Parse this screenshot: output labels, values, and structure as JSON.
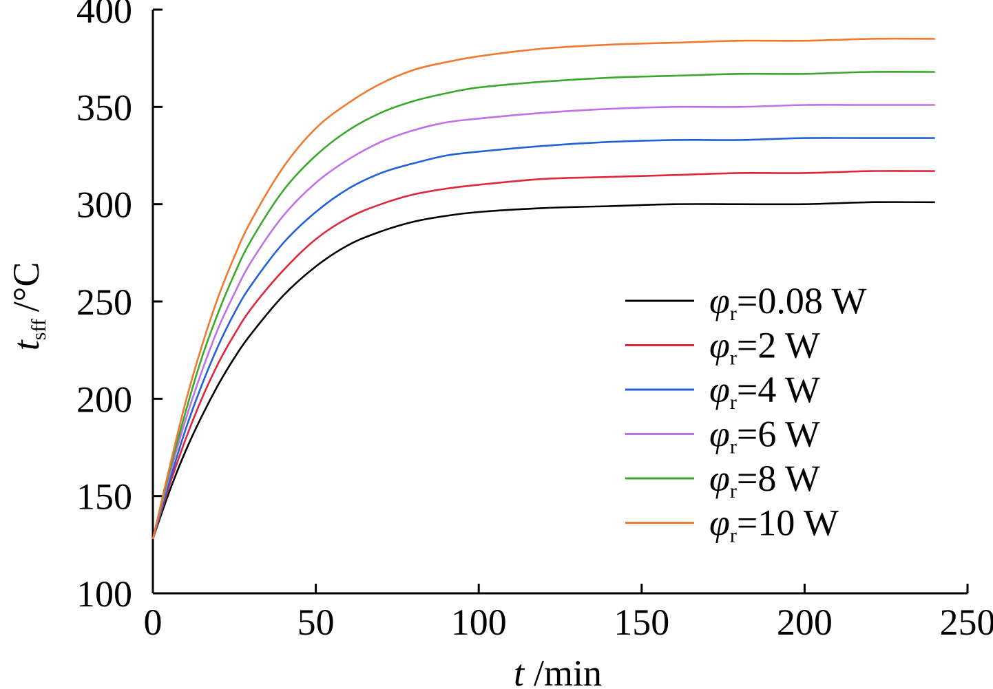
{
  "chart_data": {
    "type": "line",
    "xlabel": {
      "var": "t",
      "unit": "/min"
    },
    "ylabel": {
      "var": "t",
      "sub": "sff",
      "unit": "/°C"
    },
    "xlim": [
      0,
      250
    ],
    "ylim": [
      100,
      400
    ],
    "xticks": [
      0,
      50,
      100,
      150,
      200,
      250
    ],
    "yticks": [
      100,
      150,
      200,
      250,
      300,
      350,
      400
    ],
    "xtick_labels": [
      "0",
      "50",
      "100",
      "150",
      "200",
      "250"
    ],
    "ytick_labels": [
      "100",
      "150",
      "200",
      "250",
      "300",
      "350",
      "400"
    ],
    "grid": false,
    "legend_position": "center-right",
    "x": [
      0,
      5,
      10,
      15,
      20,
      25,
      30,
      40,
      50,
      60,
      70,
      80,
      90,
      100,
      120,
      140,
      160,
      180,
      200,
      220,
      240
    ],
    "series": [
      {
        "name": "φr=0.08 W",
        "sym": "φ",
        "sub": "r",
        "rest": "=0.08 W",
        "color": "#000000",
        "values": [
          128,
          152,
          173,
          191,
          207,
          221,
          233,
          253,
          268,
          279,
          286,
          291,
          294,
          296,
          298,
          299,
          300,
          300,
          300,
          301,
          301
        ]
      },
      {
        "name": "φr=2 W",
        "sym": "φ",
        "sub": "r",
        "rest": "=2 W",
        "color": "#e0263a",
        "values": [
          128,
          155,
          179,
          200,
          218,
          233,
          246,
          266,
          282,
          293,
          300,
          305,
          308,
          310,
          313,
          314,
          315,
          316,
          316,
          317,
          317
        ]
      },
      {
        "name": "φr=4 W",
        "sym": "φ",
        "sub": "r",
        "rest": "=4 W",
        "color": "#2060d8",
        "values": [
          128,
          157,
          184,
          207,
          227,
          244,
          258,
          280,
          296,
          308,
          316,
          321,
          325,
          327,
          330,
          332,
          333,
          333,
          334,
          334,
          334
        ]
      },
      {
        "name": "φr=6 W",
        "sym": "φ",
        "sub": "r",
        "rest": "=6 W",
        "color": "#c070e8",
        "values": [
          128,
          160,
          189,
          214,
          236,
          254,
          270,
          294,
          311,
          323,
          332,
          338,
          342,
          344,
          347,
          349,
          350,
          350,
          351,
          351,
          351
        ]
      },
      {
        "name": "φr=8 W",
        "sym": "φ",
        "sub": "r",
        "rest": "=8 W",
        "color": "#3aa82a",
        "values": [
          128,
          162,
          193,
          221,
          244,
          264,
          281,
          307,
          325,
          338,
          347,
          353,
          357,
          360,
          363,
          365,
          366,
          367,
          367,
          368,
          368
        ]
      },
      {
        "name": "φr=10 W",
        "sym": "φ",
        "sub": "r",
        "rest": "=10 W",
        "color": "#f07830",
        "values": [
          128,
          164,
          198,
          227,
          252,
          273,
          291,
          319,
          339,
          352,
          362,
          369,
          373,
          376,
          380,
          382,
          383,
          384,
          384,
          385,
          385
        ]
      }
    ]
  }
}
